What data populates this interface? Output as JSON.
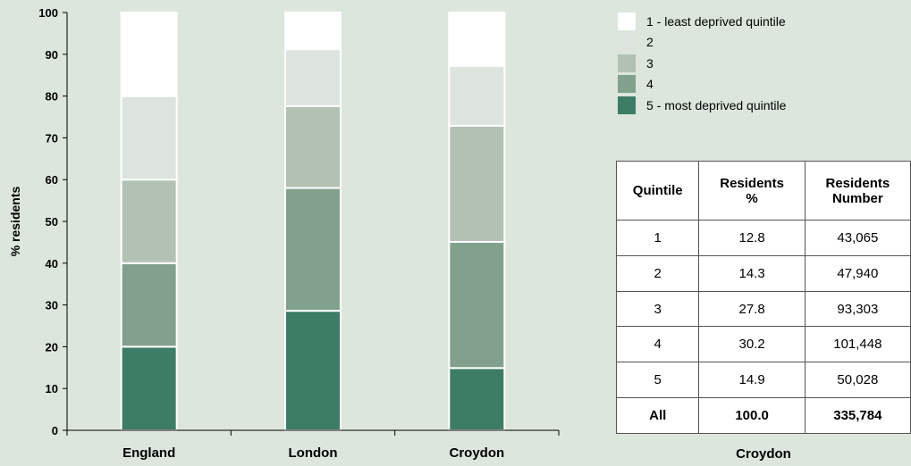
{
  "chart_data": {
    "type": "bar",
    "stacked": true,
    "ylabel": "% residents",
    "ylim": [
      0,
      100
    ],
    "yticks": [
      "0",
      "10",
      "20",
      "30",
      "40",
      "50",
      "60",
      "70",
      "80",
      "90",
      "100"
    ],
    "categories": [
      "England",
      "London",
      "Croydon"
    ],
    "series": [
      {
        "name": "5 - most deprived quintile",
        "color": "#3d7c65",
        "values": [
          20,
          28.6,
          14.9
        ]
      },
      {
        "name": "4",
        "color": "#82a18d",
        "values": [
          20,
          29.4,
          30.2
        ]
      },
      {
        "name": "3",
        "color": "#b2c1b4",
        "values": [
          20,
          19.6,
          27.8
        ]
      },
      {
        "name": "2",
        "color": "#dde3dd",
        "values": [
          20,
          13.6,
          14.3
        ]
      },
      {
        "name": "1 - least deprived quintile",
        "color": "#ffffff",
        "values": [
          20,
          8.8,
          12.8
        ]
      }
    ],
    "legend_position": "top-right"
  },
  "table": {
    "headers": [
      [
        "Quintile"
      ],
      [
        "Residents",
        "%"
      ],
      [
        "Residents",
        "Number"
      ]
    ],
    "rows": [
      [
        "1",
        "12.8",
        "43,065"
      ],
      [
        "2",
        "14.3",
        "47,940"
      ],
      [
        "3",
        "27.8",
        "93,303"
      ],
      [
        "4",
        "30.2",
        "101,448"
      ],
      [
        "5",
        "14.9",
        "50,028"
      ]
    ],
    "total": [
      "All",
      "100.0",
      "335,784"
    ],
    "caption": "Croydon"
  }
}
